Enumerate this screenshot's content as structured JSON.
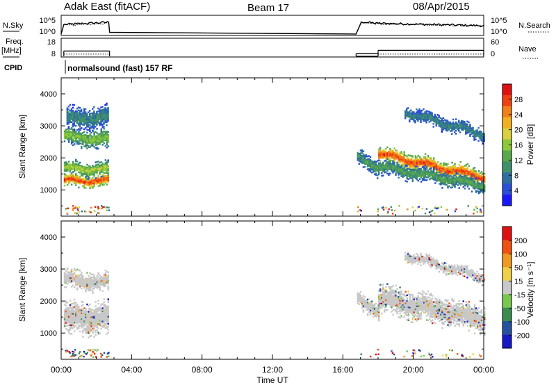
{
  "header": {
    "station": "Adak East (fitACF)",
    "beam": "Beam 17",
    "date": "08/Apr/2015"
  },
  "left_labels": {
    "nsky": "N.Sky",
    "freq": "Freq.",
    "freq_unit": "[MHz]",
    "cpid": "CPID"
  },
  "right_labels": {
    "nsearch": "N.Search",
    "nave": "Nave"
  },
  "program": "normalsound (fast) 157 RF",
  "chart_data": [
    {
      "type": "line",
      "name": "noise-panel",
      "left_axis": {
        "label": "N.Sky",
        "ticks": [
          "10^5",
          "10^0"
        ]
      },
      "right_axis": {
        "label": "N.Search",
        "ticks": [
          "10^5",
          "10^0"
        ]
      },
      "x_hours": [
        0.0,
        0.15,
        2.7,
        2.75,
        16.75,
        17.05,
        18.0,
        24.0
      ],
      "sky_level": [
        0.0,
        0.55,
        0.68,
        0.1,
        0.0,
        0.7,
        0.62,
        0.48
      ],
      "search_level": [
        0.0,
        0.5,
        0.62,
        0.1,
        0.0,
        0.65,
        0.6,
        0.45
      ]
    },
    {
      "type": "line",
      "name": "frequency-panel",
      "left_axis": {
        "label": "Freq. [MHz]",
        "ticks": [
          "18",
          "8"
        ]
      },
      "right_axis": {
        "label": "Nave",
        "ticks": [
          "60",
          "0"
        ]
      },
      "freq_mhz": [
        {
          "start_h": 0.15,
          "end_h": 2.75,
          "value": 12.0
        },
        {
          "start_h": 16.75,
          "end_h": 18.0,
          "value": 10.0
        },
        {
          "start_h": 18.0,
          "end_h": 24.0,
          "value": 12.5
        }
      ],
      "nave_segments": [
        {
          "start_h": 0.15,
          "end_h": 2.75,
          "value": 10
        },
        {
          "start_h": 18.0,
          "end_h": 24.0,
          "value": 10
        }
      ]
    },
    {
      "type": "heatmap",
      "name": "power",
      "ylabel": "Slant Range [km]",
      "yticks": [
        1000,
        2000,
        3000,
        4000
      ],
      "ylim": [
        180,
        4500
      ],
      "colorbar_label": "Power [dB]",
      "colorbar_ticks": [
        4,
        8,
        12,
        16,
        20,
        24,
        28
      ],
      "colorbar_range": [
        0,
        32
      ],
      "colors": [
        "#1818ff",
        "#2a4fd8",
        "#2e6fa0",
        "#40916a",
        "#5aa84e",
        "#8cc83a",
        "#d8d040",
        "#f0b020",
        "#f08018",
        "#f04010",
        "#e01010"
      ],
      "echo_regions": [
        {
          "t0": 0.15,
          "t1": 2.7,
          "r_center": 1260,
          "r_center_end": 1260,
          "half_width": 140,
          "peak_db": 27
        },
        {
          "t0": 0.15,
          "t1": 2.7,
          "r_center": 1650,
          "r_center_end": 1600,
          "half_width": 160,
          "peak_db": 17
        },
        {
          "t0": 0.15,
          "t1": 2.7,
          "r_center": 2650,
          "r_center_end": 2550,
          "half_width": 200,
          "peak_db": 15
        },
        {
          "t0": 0.3,
          "t1": 2.7,
          "r_center": 3200,
          "r_center_end": 3250,
          "half_width": 250,
          "peak_db": 9
        },
        {
          "t0": 16.8,
          "t1": 18.0,
          "r_center": 2000,
          "r_center_end": 1650,
          "half_width": 180,
          "peak_db": 11
        },
        {
          "t0": 18.0,
          "t1": 24.0,
          "r_center": 2100,
          "r_center_end": 1350,
          "half_width": 170,
          "peak_db": 27
        },
        {
          "t0": 18.0,
          "t1": 24.0,
          "r_center": 1700,
          "r_center_end": 1100,
          "half_width": 160,
          "peak_db": 12
        },
        {
          "t0": 19.5,
          "t1": 24.0,
          "r_center": 3400,
          "r_center_end": 2700,
          "half_width": 150,
          "peak_db": 9
        }
      ]
    },
    {
      "type": "heatmap",
      "name": "velocity",
      "ylabel": "Slant Range [km]",
      "yticks": [
        1000,
        2000,
        3000,
        4000
      ],
      "ylim": [
        180,
        4500
      ],
      "colorbar_label": "Velocity [m s⁻¹]",
      "colorbar_ticks": [
        "200",
        "100",
        "50",
        "15",
        "-15",
        "-50",
        "-100",
        "-200"
      ],
      "colors": [
        "#1818c8",
        "#2850a0",
        "#3c8c50",
        "#78c850",
        "#c8c8c8",
        "#f0d048",
        "#f09820",
        "#f05010",
        "#e01010"
      ],
      "echo_regions": [
        {
          "t0": 0.15,
          "t1": 2.7,
          "r_center": 1450,
          "r_center_end": 1450,
          "half_width": 350
        },
        {
          "t0": 0.15,
          "t1": 2.7,
          "r_center": 2650,
          "r_center_end": 2550,
          "half_width": 200
        },
        {
          "t0": 16.8,
          "t1": 18.0,
          "r_center": 2000,
          "r_center_end": 1650,
          "half_width": 180
        },
        {
          "t0": 18.0,
          "t1": 24.0,
          "r_center": 2050,
          "r_center_end": 1400,
          "half_width": 300
        },
        {
          "t0": 19.5,
          "t1": 24.0,
          "r_center": 3400,
          "r_center_end": 2700,
          "half_width": 120
        }
      ]
    }
  ],
  "x_axis": {
    "label": "Time UT",
    "ticks": [
      "00:00",
      "04:00",
      "08:00",
      "12:00",
      "16:00",
      "20:00",
      "00:00"
    ],
    "range_hours": [
      0,
      24
    ]
  }
}
